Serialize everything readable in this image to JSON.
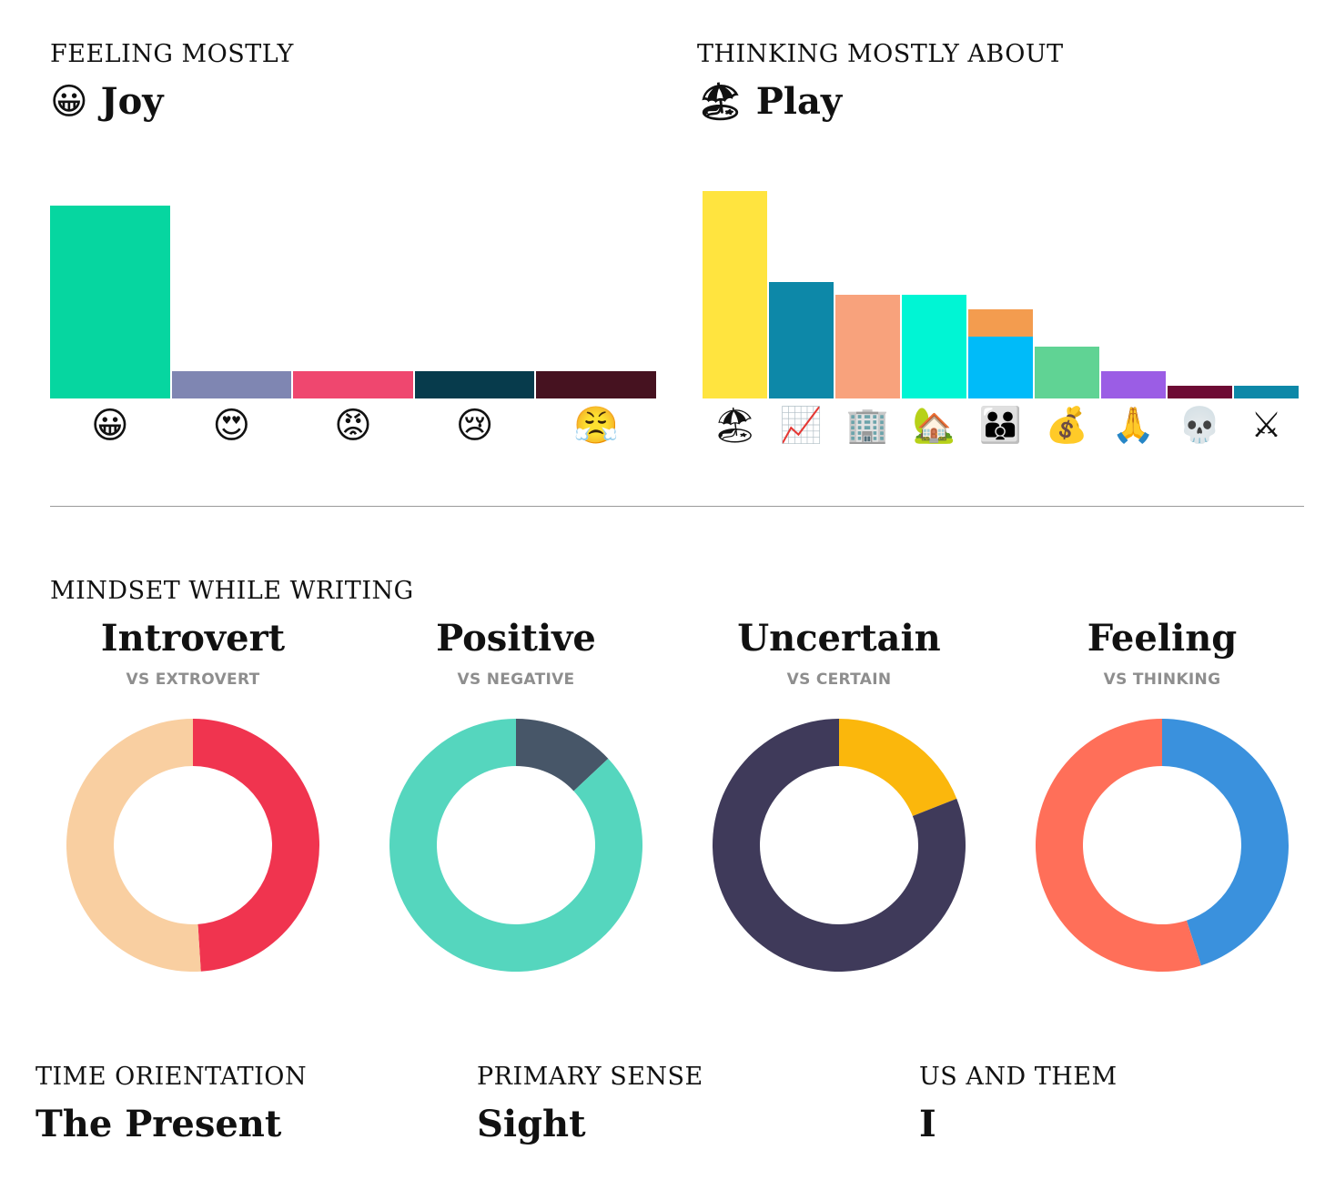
{
  "feeling": {
    "heading": "FEELING MOSTLY",
    "value_emoji": "😀",
    "value": "Joy"
  },
  "thinking": {
    "heading": "THINKING MOSTLY ABOUT",
    "value_emoji": "🏖",
    "value": "Play"
  },
  "mindset": {
    "heading": "MINDSET WHILE WRITING",
    "items": [
      {
        "title": "Introvert",
        "subtitle": "VS EXTROVERT",
        "title_color": "#f9cda0"
      },
      {
        "title": "Positive",
        "subtitle": "VS NEGATIVE",
        "title_color": "#55d6be"
      },
      {
        "title": "Uncertain",
        "subtitle": "VS CERTAIN",
        "title_color": "#3f3a5a"
      },
      {
        "title": "Feeling",
        "subtitle": "VS THINKING",
        "title_color": "#ff6f59"
      }
    ]
  },
  "bottom": [
    {
      "heading": "TIME ORIENTATION",
      "value": "The Present"
    },
    {
      "heading": "PRIMARY SENSE",
      "value": "Sight"
    },
    {
      "heading": "US AND THEM",
      "value": "I"
    }
  ],
  "chart_data": [
    {
      "type": "bar",
      "categories": [
        "😀",
        "😍",
        "😡",
        "😢",
        "😤"
      ],
      "values": [
        100,
        14,
        14,
        14,
        14
      ],
      "colors": [
        "#06d6a0",
        "#7f86b2",
        "#ef476f",
        "#073b4c",
        "#461220"
      ],
      "ylim": [
        0,
        100
      ],
      "grid": false
    },
    {
      "type": "bar",
      "categories": [
        "🏖",
        "📈",
        "🏢",
        "🏡",
        "👪",
        "💰",
        "🙏",
        "💀",
        "⚔"
      ],
      "series": [
        {
          "values": [
            100,
            56,
            50,
            50,
            30,
            25,
            13,
            6,
            6
          ],
          "colors": [
            "#ffe43f",
            "#0d88a8",
            "#f8a27c",
            "#00f5d4",
            "#00bbf9",
            "#60d394",
            "#9b5de5",
            "#6d0b34",
            "#0d88a8"
          ]
        },
        {
          "values": [
            0,
            0,
            0,
            0,
            13,
            0,
            0,
            0,
            0
          ],
          "colors": [
            "#f39c4f",
            "#f39c4f",
            "#f39c4f",
            "#f39c4f",
            "#f39c4f",
            "#f39c4f",
            "#f39c4f",
            "#f39c4f",
            "#f39c4f"
          ]
        }
      ],
      "ylim": [
        0,
        100
      ],
      "grid": false
    },
    {
      "type": "pie",
      "labels": [
        "Introvert",
        "Extrovert"
      ],
      "values": [
        51,
        49
      ],
      "colors": [
        "#f9cfa1",
        "#f0344f"
      ]
    },
    {
      "type": "pie",
      "labels": [
        "Positive",
        "Negative"
      ],
      "values": [
        87,
        13
      ],
      "colors": [
        "#55d6be",
        "#475668"
      ]
    },
    {
      "type": "pie",
      "labels": [
        "Uncertain",
        "Certain"
      ],
      "values": [
        81,
        19
      ],
      "colors": [
        "#3f3a5a",
        "#fbb70c"
      ]
    },
    {
      "type": "pie",
      "labels": [
        "Feeling",
        "Thinking"
      ],
      "values": [
        55,
        45
      ],
      "colors": [
        "#ff6f59",
        "#3a91dd"
      ]
    }
  ]
}
